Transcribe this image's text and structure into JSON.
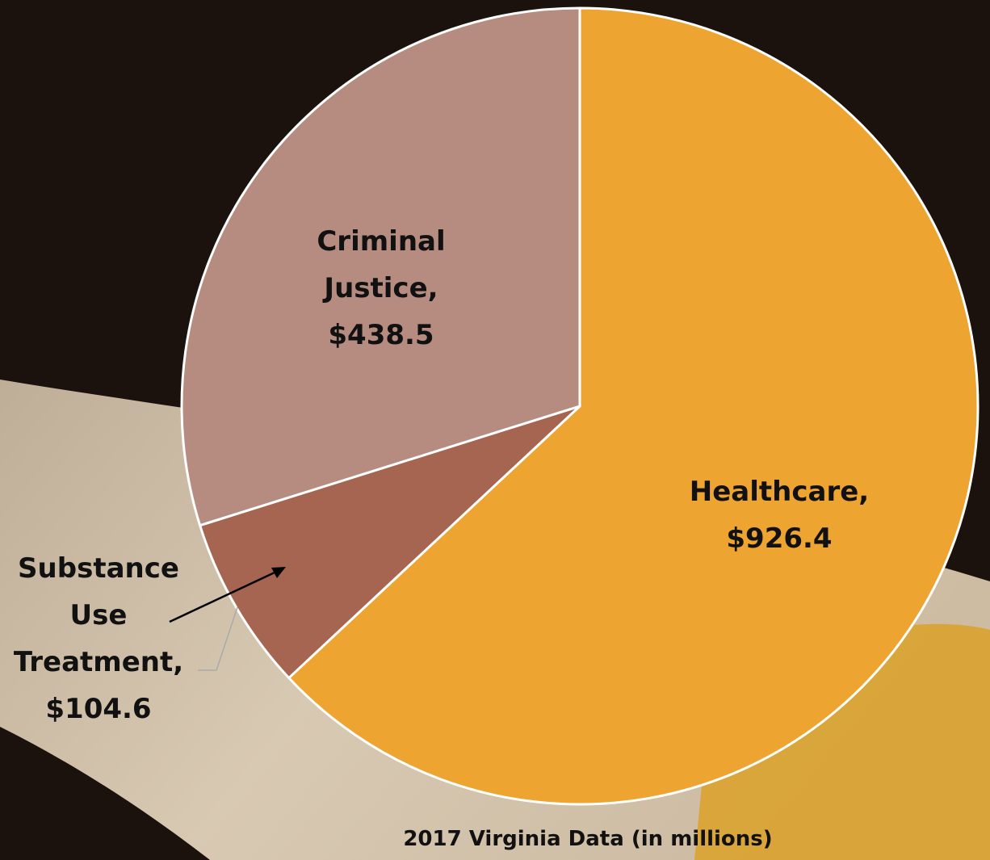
{
  "chart_data": {
    "type": "pie",
    "title": "2017 Virginia Data (in millions)",
    "categories": [
      "Healthcare,",
      "Substance Use Treatment,",
      "Criminal Justice,"
    ],
    "values": [
      926.4,
      104.6,
      438.5
    ],
    "value_labels": [
      "$926.4",
      "$104.6",
      "$438.5"
    ],
    "colors": [
      "#eea431",
      "#a56550",
      "#b78c80"
    ]
  }
}
